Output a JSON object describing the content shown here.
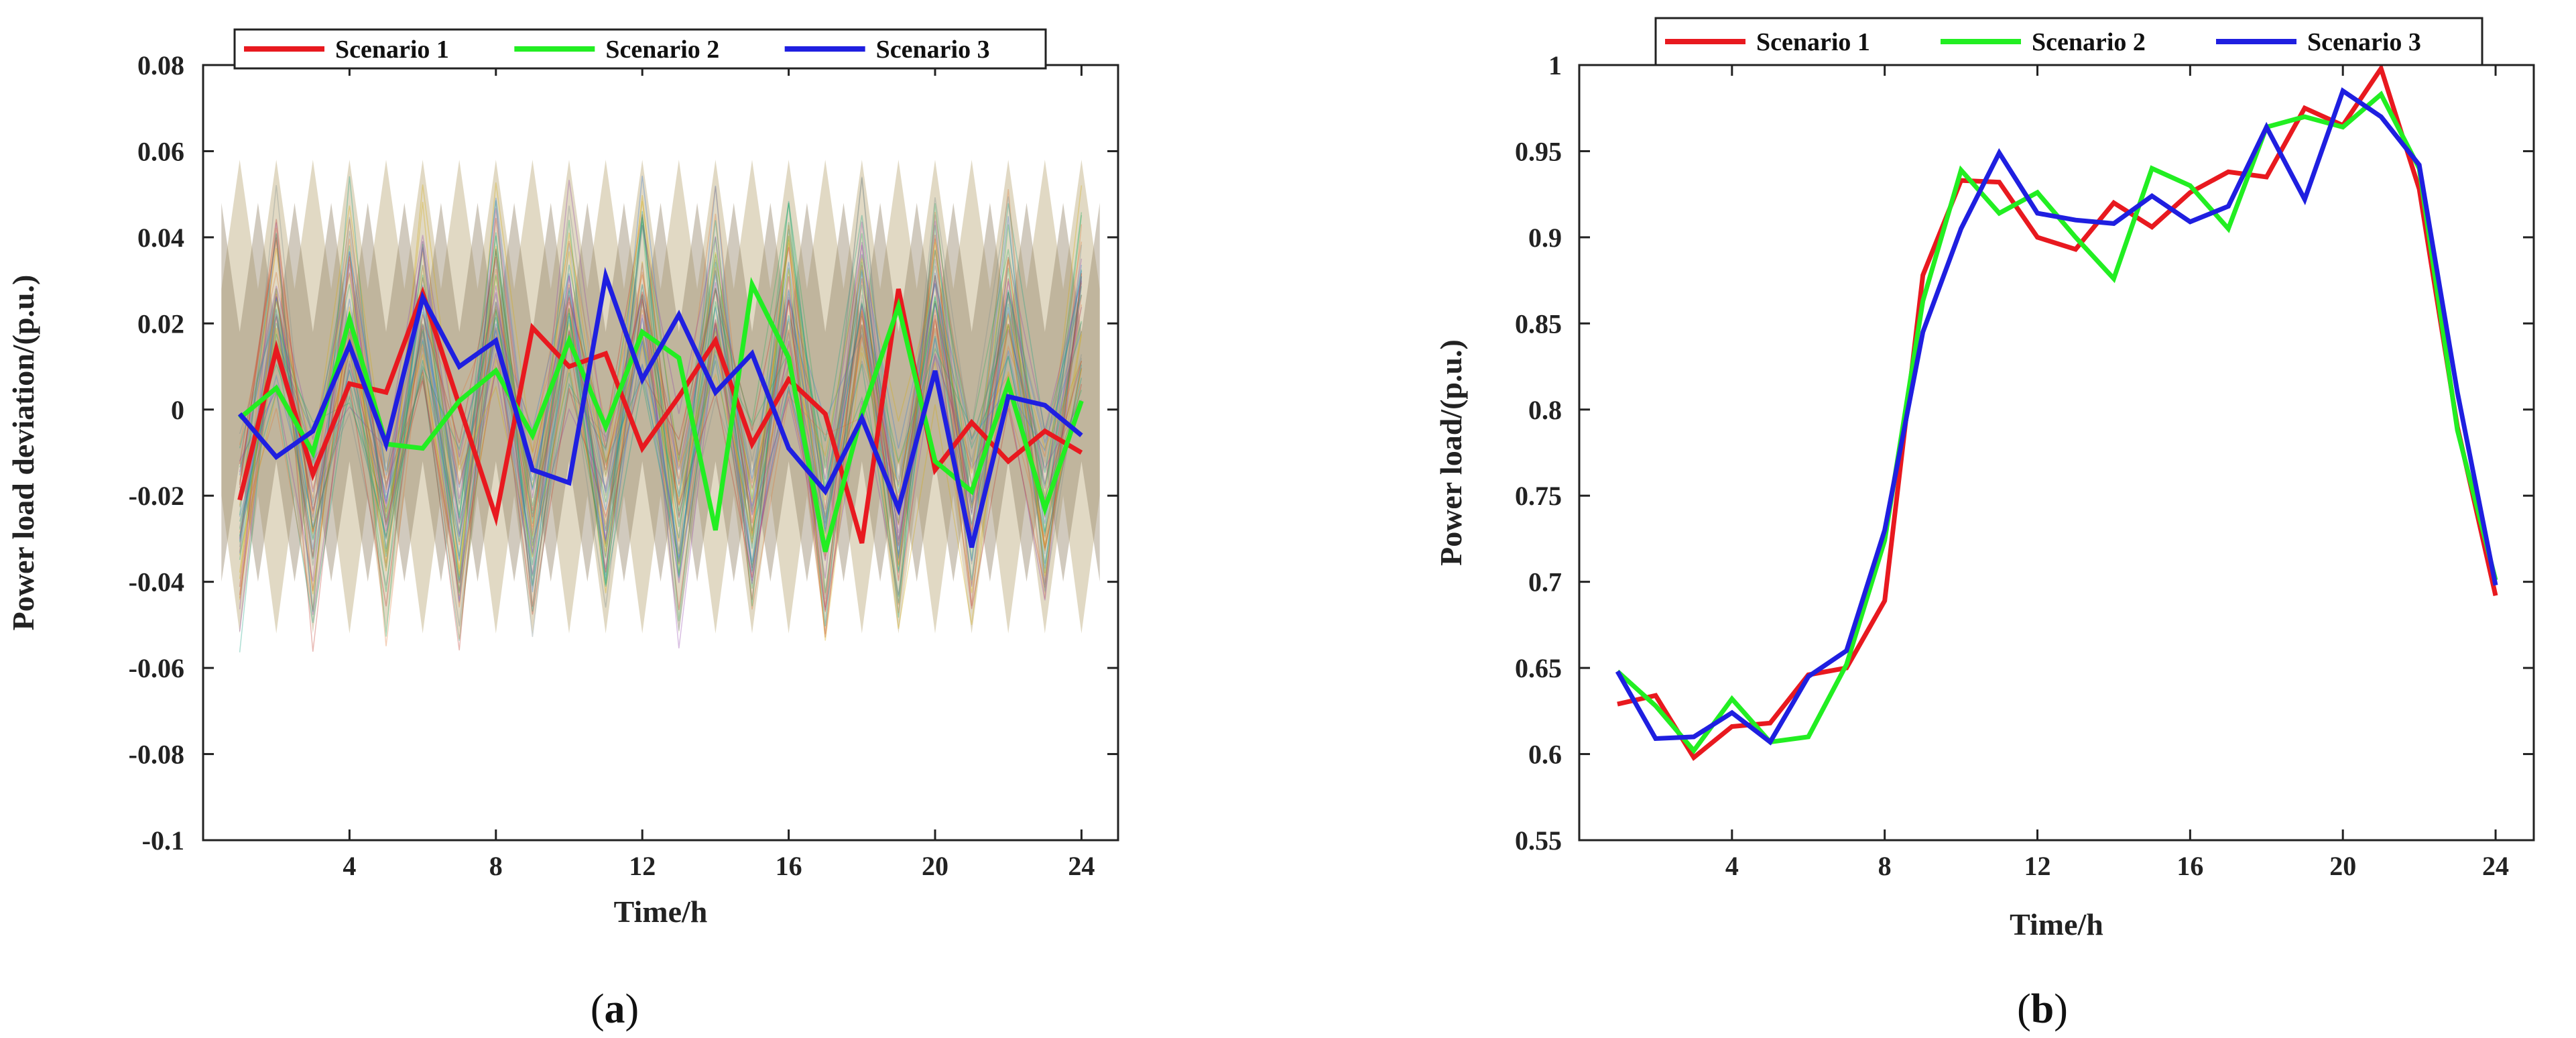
{
  "chart_data": [
    {
      "id": "a",
      "type": "line",
      "caption_letter": "a",
      "xlabel": "Time/h",
      "ylabel": "Power load deviation/(p.u.)",
      "xlim": [
        0,
        25
      ],
      "ylim": [
        -0.1,
        0.08
      ],
      "xticks": [
        4,
        8,
        12,
        16,
        20,
        24
      ],
      "yticks": [
        -0.1,
        -0.08,
        -0.06,
        -0.04,
        -0.02,
        0,
        0.02,
        0.04,
        0.06,
        0.08
      ],
      "ytick_labels": [
        "-0.1",
        "-0.08",
        "-0.06",
        "-0.04",
        "-0.02",
        "0",
        "0.02",
        "0.04",
        "0.06",
        "0.08"
      ],
      "legend": {
        "placement": "top",
        "entries": [
          "Scenario 1",
          "Scenario 2",
          "Scenario 3"
        ]
      },
      "background_band": {
        "description_units": "p.u.",
        "upper_peak": 0.058,
        "upper_trough": 0.028,
        "lower_peak": -0.052,
        "lower_trough": -0.02
      },
      "x": [
        1,
        2,
        3,
        4,
        5,
        6,
        7,
        8,
        9,
        10,
        11,
        12,
        13,
        14,
        15,
        16,
        17,
        18,
        19,
        20,
        21,
        22,
        23,
        24
      ],
      "series": [
        {
          "name": "Scenario 1",
          "color": "#e8191f",
          "values": [
            -0.021,
            0.014,
            -0.015,
            0.006,
            0.004,
            0.027,
            0.001,
            -0.025,
            0.019,
            0.01,
            0.013,
            -0.009,
            0.003,
            0.016,
            -0.008,
            0.007,
            -0.001,
            -0.031,
            0.028,
            -0.014,
            -0.003,
            -0.012,
            -0.005,
            -0.01
          ]
        },
        {
          "name": "Scenario 2",
          "color": "#22ee22",
          "values": [
            -0.002,
            0.005,
            -0.01,
            0.021,
            -0.008,
            -0.009,
            0.002,
            0.009,
            -0.006,
            0.016,
            -0.004,
            0.018,
            0.012,
            -0.028,
            0.029,
            0.012,
            -0.033,
            -0.001,
            0.024,
            -0.012,
            -0.019,
            0.006,
            -0.023,
            0.002
          ]
        },
        {
          "name": "Scenario 3",
          "color": "#1f1fe0",
          "values": [
            -0.001,
            -0.011,
            -0.005,
            0.015,
            -0.008,
            0.026,
            0.01,
            0.016,
            -0.014,
            -0.017,
            0.031,
            0.007,
            0.022,
            0.004,
            0.013,
            -0.009,
            -0.019,
            -0.002,
            -0.023,
            0.009,
            -0.032,
            0.003,
            0.001,
            -0.006
          ]
        }
      ]
    },
    {
      "id": "b",
      "type": "line",
      "caption_letter": "b",
      "xlabel": "Time/h",
      "ylabel": "Power load/(p.u.)",
      "xlim": [
        0,
        25
      ],
      "ylim": [
        0.55,
        1.0
      ],
      "xticks": [
        4,
        8,
        12,
        16,
        20,
        24
      ],
      "yticks": [
        0.55,
        0.6,
        0.65,
        0.7,
        0.75,
        0.8,
        0.85,
        0.9,
        0.95,
        1
      ],
      "ytick_labels": [
        "0.55",
        "0.6",
        "0.65",
        "0.7",
        "0.75",
        "0.8",
        "0.85",
        "0.9",
        "0.95",
        "1"
      ],
      "legend": {
        "placement": "top",
        "entries": [
          "Scenario 1",
          "Scenario 2",
          "Scenario 3"
        ]
      },
      "x": [
        1,
        2,
        3,
        4,
        5,
        6,
        7,
        8,
        9,
        10,
        11,
        12,
        13,
        14,
        15,
        16,
        17,
        18,
        19,
        20,
        21,
        22,
        23,
        24
      ],
      "series": [
        {
          "name": "Scenario 1",
          "color": "#e8191f",
          "values": [
            0.629,
            0.634,
            0.598,
            0.616,
            0.618,
            0.646,
            0.65,
            0.689,
            0.878,
            0.933,
            0.932,
            0.9,
            0.893,
            0.92,
            0.906,
            0.926,
            0.938,
            0.935,
            0.975,
            0.965,
            0.998,
            0.928,
            0.79,
            0.692
          ]
        },
        {
          "name": "Scenario 2",
          "color": "#22ee22",
          "values": [
            0.648,
            0.628,
            0.602,
            0.632,
            0.607,
            0.61,
            0.652,
            0.724,
            0.863,
            0.939,
            0.914,
            0.926,
            0.9,
            0.876,
            0.94,
            0.93,
            0.905,
            0.964,
            0.97,
            0.964,
            0.983,
            0.94,
            0.788,
            0.701
          ]
        },
        {
          "name": "Scenario 3",
          "color": "#1f1fe0",
          "values": [
            0.648,
            0.609,
            0.61,
            0.624,
            0.607,
            0.645,
            0.66,
            0.73,
            0.845,
            0.905,
            0.949,
            0.914,
            0.91,
            0.908,
            0.924,
            0.909,
            0.918,
            0.964,
            0.922,
            0.985,
            0.97,
            0.942,
            0.81,
            0.698
          ]
        }
      ]
    }
  ]
}
